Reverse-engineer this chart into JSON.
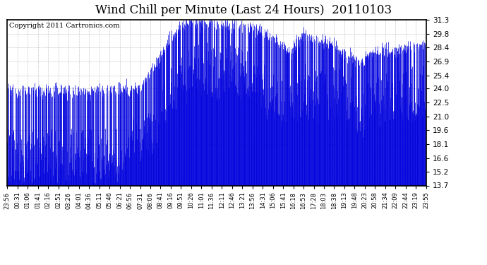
{
  "title": "Wind Chill per Minute (Last 24 Hours)  20110103",
  "copyright_text": "Copyright 2011 Cartronics.com",
  "y_ticks": [
    13.7,
    15.2,
    16.6,
    18.1,
    19.6,
    21.0,
    22.5,
    24.0,
    25.4,
    26.9,
    28.4,
    29.8,
    31.3
  ],
  "x_tick_labels": [
    "23:56",
    "00:31",
    "01:06",
    "01:41",
    "02:16",
    "02:51",
    "03:26",
    "04:01",
    "04:36",
    "05:11",
    "05:46",
    "06:21",
    "06:56",
    "07:31",
    "08:06",
    "08:41",
    "09:16",
    "09:51",
    "10:26",
    "11:01",
    "11:36",
    "12:11",
    "12:46",
    "13:21",
    "13:56",
    "14:31",
    "15:06",
    "15:41",
    "16:18",
    "16:53",
    "17:28",
    "18:03",
    "18:38",
    "19:13",
    "19:48",
    "20:23",
    "20:58",
    "21:34",
    "22:09",
    "22:44",
    "23:19",
    "23:55"
  ],
  "ylim": [
    13.7,
    31.3
  ],
  "ymin": 13.7,
  "line_color": "#0000cc",
  "fill_color": "#0000dd",
  "bg_color": "#ffffff",
  "grid_color": "#bbbbbb",
  "title_fontsize": 12,
  "copyright_fontsize": 7
}
